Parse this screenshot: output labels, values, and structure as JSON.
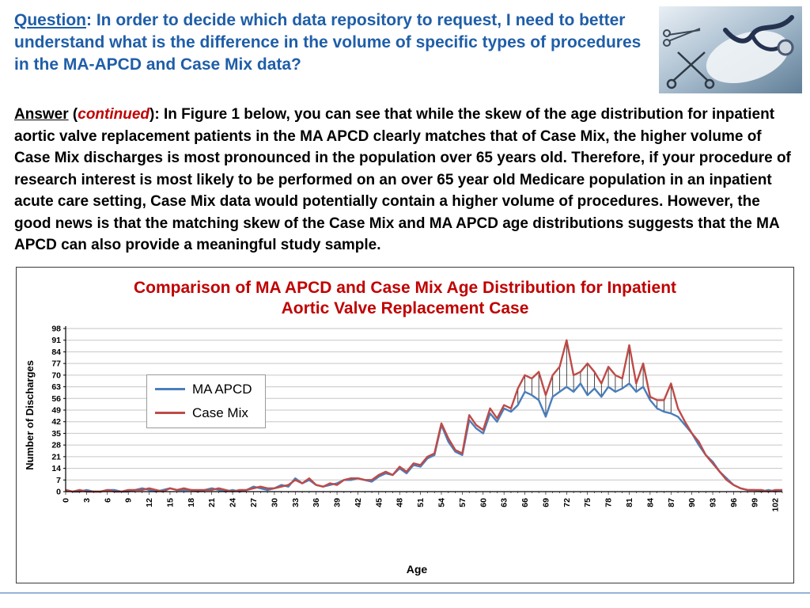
{
  "slide": {
    "colors": {
      "question_blue": "#1F5EA8",
      "title_red": "#C00000",
      "accent_rule": "#95B3D7"
    },
    "question": {
      "label": "Question",
      "text_after_label": ": In order to decide which data repository to request,  I need to better understand  what is the difference in the volume of specific types of procedures  in the MA-APCD and Case Mix data?"
    },
    "answer": {
      "label": "Answer",
      "open_paren": " (",
      "continued": "continued",
      "close_paren": ")",
      "body": ":  In Figure 1 below, you can see that while the skew of the age distribution for inpatient aortic valve replacement patients in the MA APCD clearly matches that of Case Mix,  the higher volume of Case Mix discharges is most pronounced in the population over 65 years old. Therefore, if your procedure of research interest is most likely to be performed on an over 65 year old Medicare population in an inpatient acute care setting, Case Mix data would potentially contain a higher volume of procedures. However, the good news is that the matching skew of the Case Mix and MA APCD age distributions suggests that the MA APCD can also provide a meaningful study sample."
    },
    "image_alt": "Photo of surgical instruments and a stethoscope on a blue surface"
  },
  "chart_data": {
    "type": "line",
    "title_line1": "Comparison of MA APCD and Case Mix Age Distribution for Inpatient",
    "title_line2": "Aortic Valve Replacement Case",
    "xlabel": "Age",
    "ylabel": "Number of Discharges",
    "x_min": 0,
    "x_max": 103,
    "y_min": 0,
    "y_max": 98,
    "y_tick_step": 7,
    "x_tick_step": 3,
    "grid": true,
    "legend_position": "inside-top-left",
    "highlow_range": [
      64,
      87
    ],
    "colors": {
      "ma_apcd": "#4A7EBB",
      "case_mix": "#BE4B48",
      "grid": "#C6C6C6",
      "axis": "#000000"
    },
    "x": [
      0,
      1,
      2,
      3,
      4,
      5,
      6,
      7,
      8,
      9,
      10,
      11,
      12,
      13,
      14,
      15,
      16,
      17,
      18,
      19,
      20,
      21,
      22,
      23,
      24,
      25,
      26,
      27,
      28,
      29,
      30,
      31,
      32,
      33,
      34,
      35,
      36,
      37,
      38,
      39,
      40,
      41,
      42,
      43,
      44,
      45,
      46,
      47,
      48,
      49,
      50,
      51,
      52,
      53,
      54,
      55,
      56,
      57,
      58,
      59,
      60,
      61,
      62,
      63,
      64,
      65,
      66,
      67,
      68,
      69,
      70,
      71,
      72,
      73,
      74,
      75,
      76,
      77,
      78,
      79,
      80,
      81,
      82,
      83,
      84,
      85,
      86,
      87,
      88,
      89,
      90,
      91,
      92,
      93,
      94,
      95,
      96,
      97,
      98,
      99,
      100,
      101,
      102,
      103
    ],
    "series": [
      {
        "name": "MA APCD",
        "values": [
          1,
          0,
          0,
          1,
          0,
          0,
          1,
          1,
          0,
          0,
          1,
          2,
          1,
          0,
          1,
          2,
          1,
          1,
          1,
          0,
          1,
          2,
          1,
          0,
          1,
          0,
          1,
          3,
          2,
          1,
          2,
          4,
          3,
          8,
          5,
          7,
          4,
          3,
          4,
          5,
          7,
          7,
          8,
          7,
          6,
          9,
          11,
          10,
          14,
          11,
          16,
          15,
          20,
          22,
          40,
          30,
          24,
          22,
          43,
          38,
          35,
          47,
          42,
          50,
          48,
          52,
          60,
          58,
          55,
          45,
          57,
          60,
          63,
          60,
          65,
          58,
          62,
          57,
          63,
          60,
          62,
          65,
          60,
          63,
          55,
          50,
          48,
          47,
          45,
          40,
          35,
          28,
          22,
          18,
          12,
          8,
          4,
          2,
          1,
          1,
          0,
          1,
          0,
          1
        ]
      },
      {
        "name": "Case Mix",
        "values": [
          1,
          0,
          1,
          0,
          0,
          0,
          1,
          0,
          0,
          1,
          1,
          1,
          2,
          1,
          0,
          2,
          1,
          2,
          1,
          1,
          1,
          1,
          2,
          1,
          0,
          1,
          1,
          2,
          3,
          2,
          2,
          3,
          4,
          7,
          5,
          8,
          4,
          3,
          5,
          4,
          7,
          8,
          8,
          7,
          7,
          10,
          12,
          10,
          15,
          12,
          17,
          16,
          21,
          23,
          41,
          32,
          25,
          23,
          46,
          40,
          37,
          50,
          44,
          52,
          50,
          62,
          70,
          68,
          72,
          58,
          70,
          75,
          91,
          70,
          72,
          77,
          72,
          65,
          75,
          70,
          68,
          88,
          65,
          77,
          57,
          55,
          55,
          65,
          50,
          42,
          35,
          30,
          22,
          17,
          12,
          7,
          4,
          2,
          1,
          1,
          1,
          0,
          1,
          1
        ]
      }
    ]
  }
}
